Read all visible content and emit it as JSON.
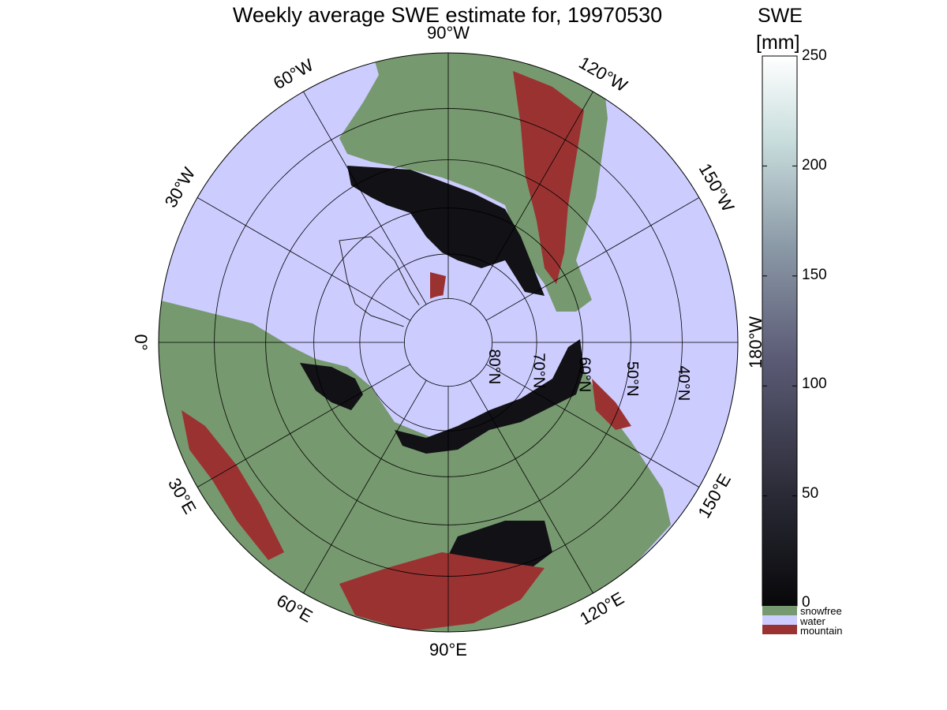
{
  "title": "Weekly average SWE estimate for, 19970530",
  "colors": {
    "snowfree": "#77996f",
    "water": "#ccccff",
    "mountain": "#9b3232",
    "snow_dark": "#111116"
  },
  "map": {
    "projection": "north-polar-stereographic",
    "lon_labels": [
      {
        "text": "90°W",
        "lon": -90
      },
      {
        "text": "60°W",
        "lon": -60
      },
      {
        "text": "120°W",
        "lon": -120
      },
      {
        "text": "30°W",
        "lon": -30
      },
      {
        "text": "150°W",
        "lon": -150
      },
      {
        "text": "0°",
        "lon": 0
      },
      {
        "text": "180°W",
        "lon": 180
      },
      {
        "text": "30°E",
        "lon": 30
      },
      {
        "text": "150°E",
        "lon": 150
      },
      {
        "text": "60°E",
        "lon": 60
      },
      {
        "text": "120°E",
        "lon": 120
      },
      {
        "text": "90°E",
        "lon": 90
      }
    ],
    "lat_labels": [
      {
        "text": "80°N",
        "lat": 80
      },
      {
        "text": "70°N",
        "lat": 70
      },
      {
        "text": "60°N",
        "lat": 60
      },
      {
        "text": "50°N",
        "lat": 50
      },
      {
        "text": "40°N",
        "lat": 40
      }
    ]
  },
  "colorbar": {
    "label_line1": "SWE",
    "label_line2": "[mm]",
    "ticks": [
      "250",
      "200",
      "150",
      "100",
      "50",
      "0"
    ],
    "range": [
      0,
      250
    ],
    "categories": [
      {
        "label": "snowfree",
        "color": "#77996f"
      },
      {
        "label": "water",
        "color": "#ccccff"
      },
      {
        "label": "mountain",
        "color": "#9b3232"
      }
    ]
  }
}
